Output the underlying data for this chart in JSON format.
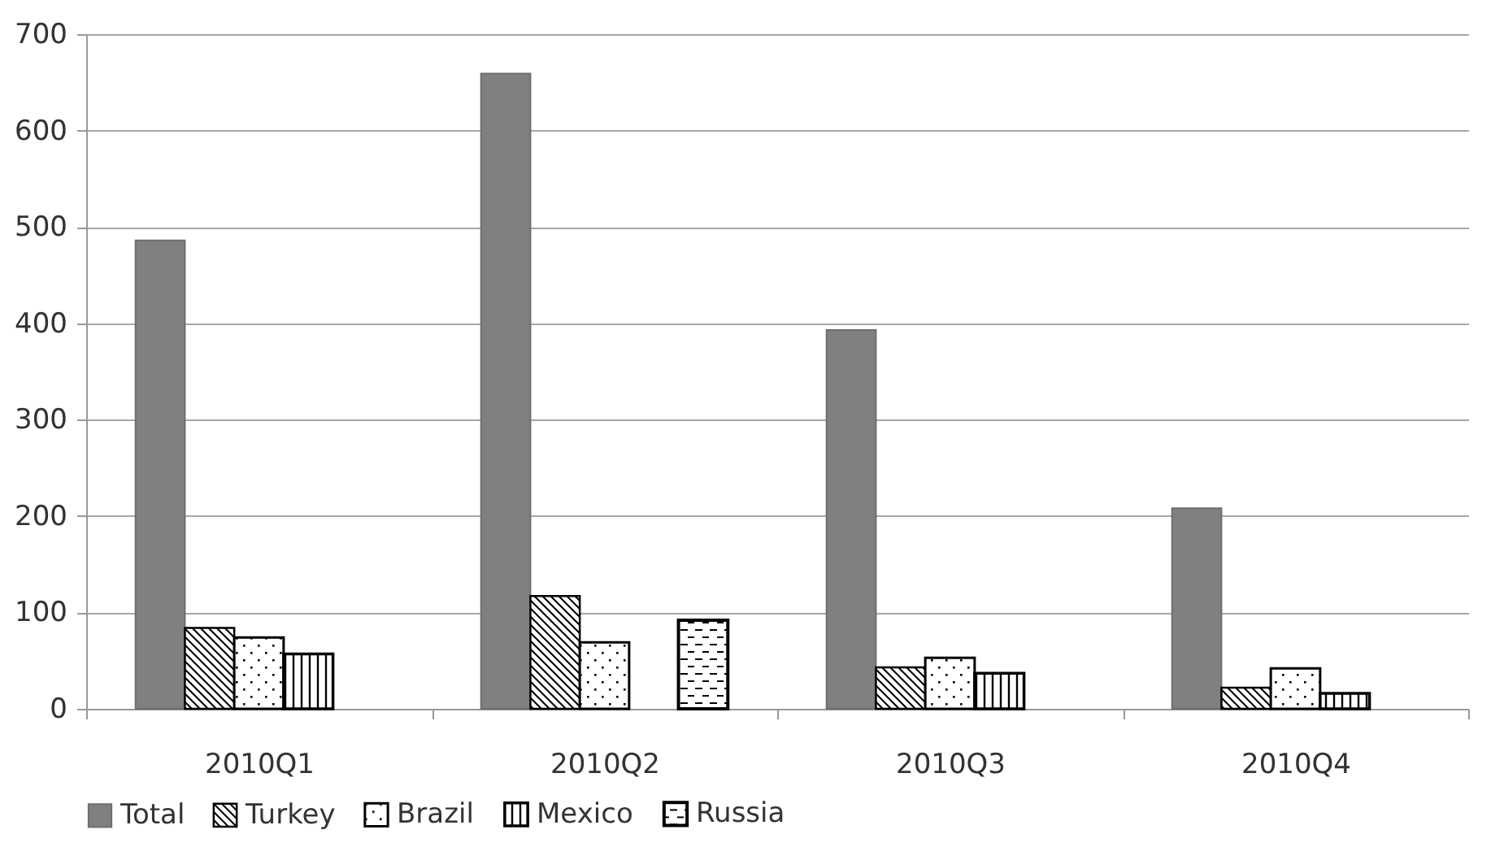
{
  "chart_data": {
    "type": "bar",
    "categories": [
      "2010Q1",
      "2010Q2",
      "2010Q3",
      "2010Q4"
    ],
    "series": [
      {
        "name": "Total",
        "color": "#808080",
        "values": [
          486,
          659,
          393,
          208
        ]
      },
      {
        "name": "Turkey",
        "color": "#000000",
        "values": [
          84,
          117,
          43,
          22
        ]
      },
      {
        "name": "Brazil",
        "color": "#000000",
        "values": [
          74,
          69,
          53,
          42
        ]
      },
      {
        "name": "Mexico",
        "color": "#000000",
        "values": [
          57,
          null,
          37,
          16
        ]
      },
      {
        "name": "Russia",
        "color": "#000000",
        "values": [
          null,
          92,
          null,
          null
        ]
      }
    ],
    "ylim": [
      0,
      700
    ],
    "yticks": [
      0,
      100,
      200,
      300,
      400,
      500,
      600,
      700
    ],
    "grid": "y",
    "legend": "bottom"
  }
}
